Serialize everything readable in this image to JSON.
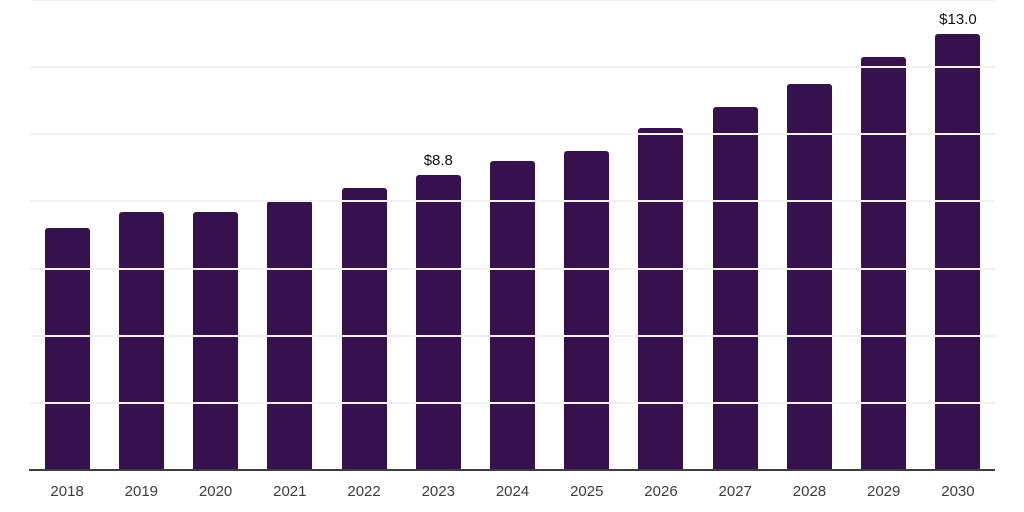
{
  "chart_data": {
    "type": "bar",
    "title": "",
    "categories": [
      "2018",
      "2019",
      "2020",
      "2021",
      "2022",
      "2023",
      "2024",
      "2025",
      "2026",
      "2027",
      "2028",
      "2029",
      "2030"
    ],
    "values": [
      7.2,
      7.7,
      7.7,
      8.0,
      8.4,
      8.8,
      9.2,
      9.5,
      10.2,
      10.8,
      11.5,
      12.3,
      13.0
    ],
    "bar_labels": {
      "2023": "$8.8",
      "2030": "$13.0"
    },
    "xlabel": "",
    "ylabel": "",
    "ylim": [
      0,
      14
    ],
    "gridline_step": 2,
    "grid_on": true,
    "y_axis_tick_labels_visible": false,
    "legend_position": "none",
    "colors": {
      "bar": "#36114e",
      "gridline": "#f2f2f2",
      "axis_line": "#3d3d3d",
      "tick_label": "#3c3c3c",
      "value_label": "#111111",
      "background": "#ffffff"
    }
  }
}
